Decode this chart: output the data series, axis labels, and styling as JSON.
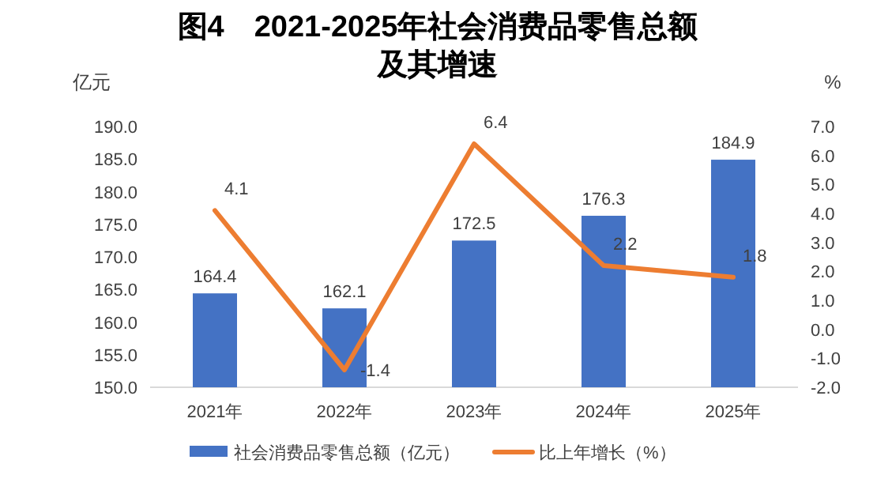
{
  "chart_data": {
    "type": "bar",
    "title": "图4　2021-2025年社会消费品零售总额及其增速",
    "ylabel": "亿元",
    "y2label": "%",
    "categories": [
      "2021年",
      "2022年",
      "2023年",
      "2024年",
      "2025年"
    ],
    "series": [
      {
        "name": "社会消费品零售总额（亿元）",
        "color": "#4472c4",
        "values": [
          164.4,
          162.1,
          172.5,
          176.3,
          184.9
        ]
      },
      {
        "name": "比上年增长（%）",
        "type": "line",
        "axis": "y2",
        "color": "#ed7d31",
        "values": [
          4.1,
          -1.4,
          6.4,
          2.2,
          1.8
        ]
      }
    ],
    "ylim": [
      150,
      190
    ],
    "yticks": [
      {
        "value": 150,
        "label": "150.0"
      },
      {
        "value": 155,
        "label": "155.0"
      },
      {
        "value": 160,
        "label": "160.0"
      },
      {
        "value": 165,
        "label": "165.0"
      },
      {
        "value": 170,
        "label": "170.0"
      },
      {
        "value": 175,
        "label": "175.0"
      },
      {
        "value": 180,
        "label": "180.0"
      },
      {
        "value": 185,
        "label": "185.0"
      },
      {
        "value": 190,
        "label": "190.0"
      }
    ],
    "y2lim": [
      -2,
      7
    ],
    "y2ticks": [
      {
        "value": -2,
        "label": "-2.0"
      },
      {
        "value": -1,
        "label": "-1.0"
      },
      {
        "value": 0,
        "label": "0.0"
      },
      {
        "value": 1,
        "label": "1.0"
      },
      {
        "value": 2,
        "label": "2.0"
      },
      {
        "value": 3,
        "label": "3.0"
      },
      {
        "value": 4,
        "label": "4.0"
      },
      {
        "value": 5,
        "label": "5.0"
      },
      {
        "value": 6,
        "label": "6.0"
      },
      {
        "value": 7,
        "label": "7.0"
      }
    ],
    "data_labels": true,
    "legend": "bottom",
    "marker": "none",
    "line_style": "solid"
  }
}
